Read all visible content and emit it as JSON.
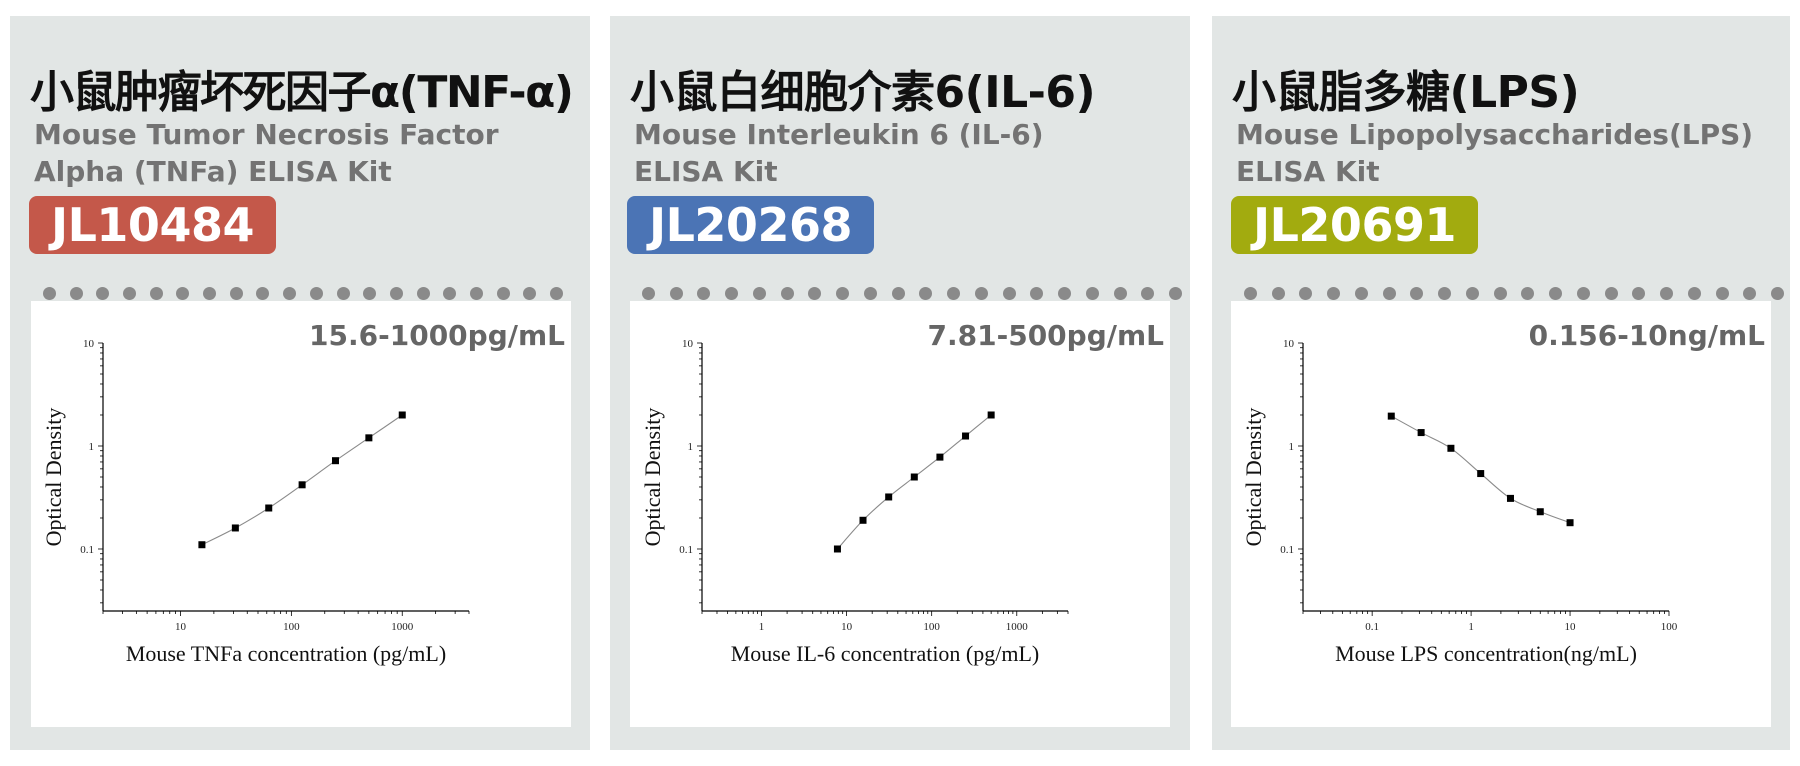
{
  "panels": [
    {
      "title": "小鼠肿瘤坏死因子α(TNF-α)",
      "subtitle_line1": "Mouse Tumor Necrosis Factor",
      "subtitle_line2": "Alpha (TNFa) ELISA Kit",
      "code": "JL10484",
      "code_color": "#c4584a",
      "range": "15.6-1000pg/mL"
    },
    {
      "title": "小鼠白细胞介素6(IL-6)",
      "subtitle_line1": "Mouse Interleukin 6 (IL-6)",
      "subtitle_line2": "ELISA Kit",
      "code": "JL20268",
      "code_color": "#4b74b5",
      "range": "7.81-500pg/mL"
    },
    {
      "title": "小鼠脂多糖(LPS)",
      "subtitle_line1": "Mouse Lipopolysaccharides(LPS)",
      "subtitle_line2": "ELISA Kit",
      "code": "JL20691",
      "code_color": "#a2ab0f",
      "range": "0.156-10ng/mL"
    }
  ],
  "chart_data": [
    {
      "type": "scatter",
      "xlabel": "Mouse TNFa concentration (pg/mL)",
      "ylabel": "Optical Density",
      "x_scale": "log",
      "y_scale": "log",
      "xlim": [
        2,
        4000
      ],
      "ylim": [
        0.025,
        10
      ],
      "x_ticks": [
        10,
        100,
        1000
      ],
      "x_tick_labels": [
        "10",
        "100",
        "1000"
      ],
      "y_ticks": [
        0.1,
        1,
        10
      ],
      "y_tick_labels": [
        "0.1",
        "1",
        "10"
      ],
      "x": [
        15.6,
        31.25,
        62.5,
        125,
        250,
        500,
        1000
      ],
      "y": [
        0.11,
        0.16,
        0.25,
        0.42,
        0.72,
        1.2,
        2.0
      ],
      "fit_line": true
    },
    {
      "type": "scatter",
      "xlabel": "Mouse IL-6 concentration (pg/mL)",
      "ylabel": "Optical Density",
      "x_scale": "log",
      "y_scale": "log",
      "xlim": [
        0.2,
        4000
      ],
      "ylim": [
        0.025,
        10
      ],
      "x_ticks": [
        1,
        10,
        100,
        1000
      ],
      "x_tick_labels": [
        "1",
        "10",
        "100",
        "1000"
      ],
      "y_ticks": [
        0.1,
        1,
        10
      ],
      "y_tick_labels": [
        "0.1",
        "1",
        "10"
      ],
      "x": [
        7.81,
        15.6,
        31.25,
        62.5,
        125,
        250,
        500
      ],
      "y": [
        0.1,
        0.19,
        0.32,
        0.5,
        0.78,
        1.25,
        2.0
      ],
      "fit_line": true
    },
    {
      "type": "scatter",
      "xlabel": "Mouse LPS concentration(ng/mL)",
      "ylabel": "Optical Density",
      "x_scale": "log",
      "y_scale": "log",
      "xlim": [
        0.02,
        100
      ],
      "ylim": [
        0.025,
        10
      ],
      "x_ticks": [
        0.1,
        1,
        10,
        100
      ],
      "x_tick_labels": [
        "0.1",
        "1",
        "10",
        "100"
      ],
      "y_ticks": [
        0.1,
        1,
        10
      ],
      "y_tick_labels": [
        "0.1",
        "1",
        "10"
      ],
      "x": [
        0.156,
        0.3125,
        0.625,
        1.25,
        2.5,
        5,
        10
      ],
      "y": [
        1.95,
        1.35,
        0.95,
        0.54,
        0.31,
        0.23,
        0.18
      ],
      "fit_line": true
    }
  ]
}
